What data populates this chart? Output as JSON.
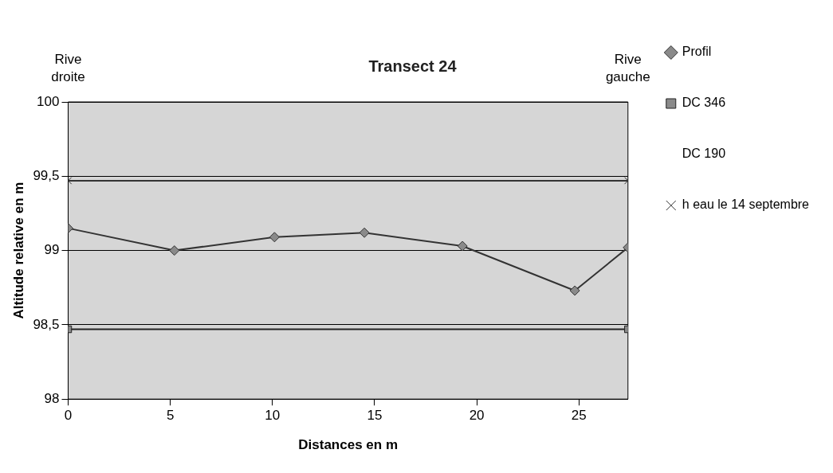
{
  "chart_data": {
    "type": "line",
    "title": "Transect 24",
    "xlabel": "Distances en m",
    "ylabel": "Altitude relative en m",
    "annotations": [
      "Rive droite",
      "Rive gauche"
    ],
    "xlim": [
      0,
      27.4
    ],
    "xticks": [
      0,
      5,
      10,
      15,
      20,
      25
    ],
    "ylim": [
      98,
      100
    ],
    "yticks": [
      98,
      {
        "value": 98.5,
        "label": "98,5"
      },
      99,
      {
        "value": 99.5,
        "label": "99,5"
      },
      100
    ],
    "grid": "y",
    "legend": "right",
    "series": [
      {
        "name": "Profil",
        "color": "#333333",
        "marker": "diamond",
        "x": [
          0,
          5.2,
          10.1,
          14.5,
          19.3,
          24.8,
          27.4
        ],
        "values": [
          99.15,
          99.0,
          99.09,
          99.12,
          99.03,
          98.73,
          99.02
        ]
      },
      {
        "name": "DC 346",
        "color": "#222222",
        "marker": "square",
        "x": [
          0,
          27.4
        ],
        "values": [
          98.47,
          98.47
        ]
      },
      {
        "name": "DC 190"
      },
      {
        "name": "h eau le 14 septembre",
        "color": "#333333",
        "marker": "cross",
        "x": [
          0,
          27.4
        ],
        "values": [
          99.47,
          99.47
        ]
      }
    ]
  }
}
